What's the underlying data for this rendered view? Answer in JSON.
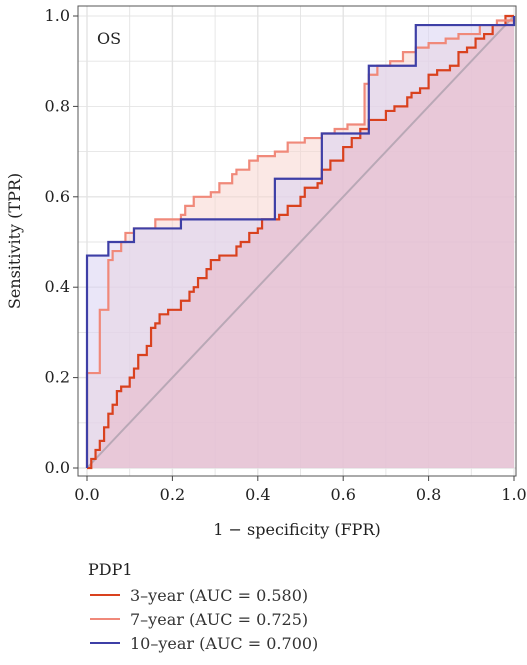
{
  "chart_data": {
    "type": "line",
    "subtype": "ROC",
    "annotation": "OS",
    "xlabel": "1 − specificity (FPR)",
    "ylabel": "Sensitivity (TPR)",
    "xlim": [
      0,
      1
    ],
    "ylim": [
      0,
      1
    ],
    "x_ticks": [
      "0.0",
      "0.2",
      "0.4",
      "0.6",
      "0.8",
      "1.0"
    ],
    "y_ticks": [
      "0.0",
      "0.2",
      "0.4",
      "0.6",
      "0.8",
      "1.0"
    ],
    "grid": true,
    "legend": {
      "title": "PDP1",
      "placement": "bottom"
    },
    "reference_line": {
      "from": [
        0,
        0
      ],
      "to": [
        1,
        1
      ],
      "color": "#b9a8b6"
    },
    "series": [
      {
        "name": "3–year (AUC = 0.580)",
        "color": "#d9411e",
        "fill": "#e8b8c8",
        "points": [
          [
            0,
            0
          ],
          [
            0.01,
            0
          ],
          [
            0.01,
            0.02
          ],
          [
            0.02,
            0.02
          ],
          [
            0.02,
            0.04
          ],
          [
            0.03,
            0.04
          ],
          [
            0.03,
            0.06
          ],
          [
            0.04,
            0.06
          ],
          [
            0.04,
            0.09
          ],
          [
            0.05,
            0.09
          ],
          [
            0.05,
            0.12
          ],
          [
            0.06,
            0.12
          ],
          [
            0.06,
            0.14
          ],
          [
            0.07,
            0.14
          ],
          [
            0.07,
            0.17
          ],
          [
            0.08,
            0.17
          ],
          [
            0.08,
            0.18
          ],
          [
            0.1,
            0.18
          ],
          [
            0.1,
            0.2
          ],
          [
            0.11,
            0.2
          ],
          [
            0.11,
            0.22
          ],
          [
            0.12,
            0.22
          ],
          [
            0.12,
            0.25
          ],
          [
            0.14,
            0.25
          ],
          [
            0.14,
            0.27
          ],
          [
            0.15,
            0.27
          ],
          [
            0.15,
            0.31
          ],
          [
            0.16,
            0.31
          ],
          [
            0.16,
            0.32
          ],
          [
            0.17,
            0.32
          ],
          [
            0.17,
            0.34
          ],
          [
            0.19,
            0.34
          ],
          [
            0.19,
            0.35
          ],
          [
            0.22,
            0.35
          ],
          [
            0.22,
            0.37
          ],
          [
            0.24,
            0.37
          ],
          [
            0.24,
            0.39
          ],
          [
            0.25,
            0.39
          ],
          [
            0.25,
            0.4
          ],
          [
            0.26,
            0.4
          ],
          [
            0.26,
            0.42
          ],
          [
            0.28,
            0.42
          ],
          [
            0.28,
            0.44
          ],
          [
            0.29,
            0.44
          ],
          [
            0.29,
            0.46
          ],
          [
            0.31,
            0.46
          ],
          [
            0.31,
            0.47
          ],
          [
            0.35,
            0.47
          ],
          [
            0.35,
            0.49
          ],
          [
            0.36,
            0.49
          ],
          [
            0.36,
            0.5
          ],
          [
            0.38,
            0.5
          ],
          [
            0.38,
            0.52
          ],
          [
            0.4,
            0.52
          ],
          [
            0.4,
            0.53
          ],
          [
            0.41,
            0.53
          ],
          [
            0.41,
            0.55
          ],
          [
            0.45,
            0.55
          ],
          [
            0.45,
            0.56
          ],
          [
            0.47,
            0.56
          ],
          [
            0.47,
            0.58
          ],
          [
            0.5,
            0.58
          ],
          [
            0.5,
            0.6
          ],
          [
            0.51,
            0.6
          ],
          [
            0.51,
            0.62
          ],
          [
            0.54,
            0.62
          ],
          [
            0.54,
            0.63
          ],
          [
            0.55,
            0.63
          ],
          [
            0.55,
            0.66
          ],
          [
            0.57,
            0.66
          ],
          [
            0.57,
            0.68
          ],
          [
            0.6,
            0.68
          ],
          [
            0.6,
            0.71
          ],
          [
            0.62,
            0.71
          ],
          [
            0.62,
            0.73
          ],
          [
            0.64,
            0.73
          ],
          [
            0.64,
            0.75
          ],
          [
            0.66,
            0.75
          ],
          [
            0.66,
            0.77
          ],
          [
            0.7,
            0.77
          ],
          [
            0.7,
            0.79
          ],
          [
            0.72,
            0.79
          ],
          [
            0.72,
            0.8
          ],
          [
            0.75,
            0.8
          ],
          [
            0.75,
            0.82
          ],
          [
            0.76,
            0.82
          ],
          [
            0.76,
            0.83
          ],
          [
            0.78,
            0.83
          ],
          [
            0.78,
            0.84
          ],
          [
            0.8,
            0.84
          ],
          [
            0.8,
            0.87
          ],
          [
            0.82,
            0.87
          ],
          [
            0.82,
            0.88
          ],
          [
            0.85,
            0.88
          ],
          [
            0.85,
            0.89
          ],
          [
            0.87,
            0.89
          ],
          [
            0.87,
            0.92
          ],
          [
            0.89,
            0.92
          ],
          [
            0.89,
            0.93
          ],
          [
            0.91,
            0.93
          ],
          [
            0.91,
            0.95
          ],
          [
            0.93,
            0.95
          ],
          [
            0.93,
            0.96
          ],
          [
            0.95,
            0.96
          ],
          [
            0.95,
            0.98
          ],
          [
            0.98,
            0.98
          ],
          [
            0.98,
            1
          ],
          [
            1,
            1
          ]
        ]
      },
      {
        "name": "7–year (AUC = 0.725)",
        "color": "#f0897a",
        "fill": "#f7d6d0",
        "points": [
          [
            0,
            0
          ],
          [
            0,
            0.21
          ],
          [
            0.03,
            0.21
          ],
          [
            0.03,
            0.35
          ],
          [
            0.05,
            0.35
          ],
          [
            0.05,
            0.46
          ],
          [
            0.06,
            0.46
          ],
          [
            0.06,
            0.48
          ],
          [
            0.08,
            0.48
          ],
          [
            0.08,
            0.5
          ],
          [
            0.09,
            0.5
          ],
          [
            0.09,
            0.52
          ],
          [
            0.11,
            0.52
          ],
          [
            0.11,
            0.53
          ],
          [
            0.16,
            0.53
          ],
          [
            0.16,
            0.55
          ],
          [
            0.22,
            0.55
          ],
          [
            0.22,
            0.56
          ],
          [
            0.23,
            0.56
          ],
          [
            0.23,
            0.58
          ],
          [
            0.25,
            0.58
          ],
          [
            0.25,
            0.6
          ],
          [
            0.29,
            0.6
          ],
          [
            0.29,
            0.61
          ],
          [
            0.31,
            0.61
          ],
          [
            0.31,
            0.63
          ],
          [
            0.34,
            0.63
          ],
          [
            0.34,
            0.65
          ],
          [
            0.35,
            0.65
          ],
          [
            0.35,
            0.66
          ],
          [
            0.38,
            0.66
          ],
          [
            0.38,
            0.68
          ],
          [
            0.4,
            0.68
          ],
          [
            0.4,
            0.69
          ],
          [
            0.44,
            0.69
          ],
          [
            0.44,
            0.7
          ],
          [
            0.47,
            0.7
          ],
          [
            0.47,
            0.72
          ],
          [
            0.51,
            0.72
          ],
          [
            0.51,
            0.73
          ],
          [
            0.55,
            0.73
          ],
          [
            0.55,
            0.74
          ],
          [
            0.58,
            0.74
          ],
          [
            0.58,
            0.75
          ],
          [
            0.61,
            0.75
          ],
          [
            0.61,
            0.76
          ],
          [
            0.65,
            0.76
          ],
          [
            0.65,
            0.85
          ],
          [
            0.66,
            0.85
          ],
          [
            0.66,
            0.87
          ],
          [
            0.68,
            0.87
          ],
          [
            0.68,
            0.89
          ],
          [
            0.71,
            0.89
          ],
          [
            0.71,
            0.9
          ],
          [
            0.74,
            0.9
          ],
          [
            0.74,
            0.92
          ],
          [
            0.77,
            0.92
          ],
          [
            0.77,
            0.93
          ],
          [
            0.8,
            0.93
          ],
          [
            0.8,
            0.94
          ],
          [
            0.84,
            0.94
          ],
          [
            0.84,
            0.95
          ],
          [
            0.87,
            0.95
          ],
          [
            0.87,
            0.96
          ],
          [
            0.92,
            0.96
          ],
          [
            0.92,
            0.98
          ],
          [
            0.96,
            0.98
          ],
          [
            0.96,
            0.99
          ],
          [
            1,
            0.99
          ],
          [
            1,
            1
          ]
        ]
      },
      {
        "name": "10–year (AUC = 0.700)",
        "color": "#3e3fa6",
        "fill": "#d8d2f2",
        "points": [
          [
            0,
            0
          ],
          [
            0,
            0.47
          ],
          [
            0.05,
            0.47
          ],
          [
            0.05,
            0.5
          ],
          [
            0.11,
            0.5
          ],
          [
            0.11,
            0.53
          ],
          [
            0.22,
            0.53
          ],
          [
            0.22,
            0.55
          ],
          [
            0.44,
            0.55
          ],
          [
            0.44,
            0.64
          ],
          [
            0.55,
            0.64
          ],
          [
            0.55,
            0.74
          ],
          [
            0.66,
            0.74
          ],
          [
            0.66,
            0.89
          ],
          [
            0.77,
            0.89
          ],
          [
            0.77,
            0.98
          ],
          [
            1,
            0.98
          ],
          [
            1,
            1
          ]
        ]
      }
    ]
  }
}
